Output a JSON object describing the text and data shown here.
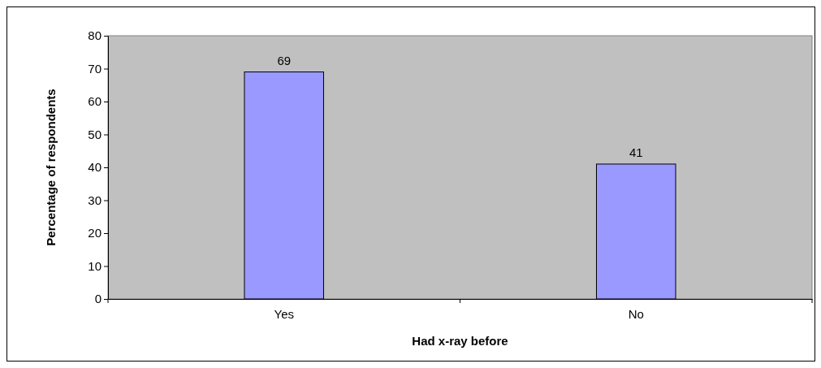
{
  "chart_data": {
    "type": "bar",
    "xlabel": "Had x-ray before",
    "ylabel": "Percentage of respondents",
    "categories": [
      "Yes",
      "No"
    ],
    "values": [
      69,
      41
    ],
    "color": "#9999ff",
    "ylim": [
      0,
      80
    ],
    "yticks": [
      0,
      10,
      20,
      30,
      40,
      50,
      60,
      70,
      80
    ],
    "grid": false,
    "data_labels": true
  }
}
